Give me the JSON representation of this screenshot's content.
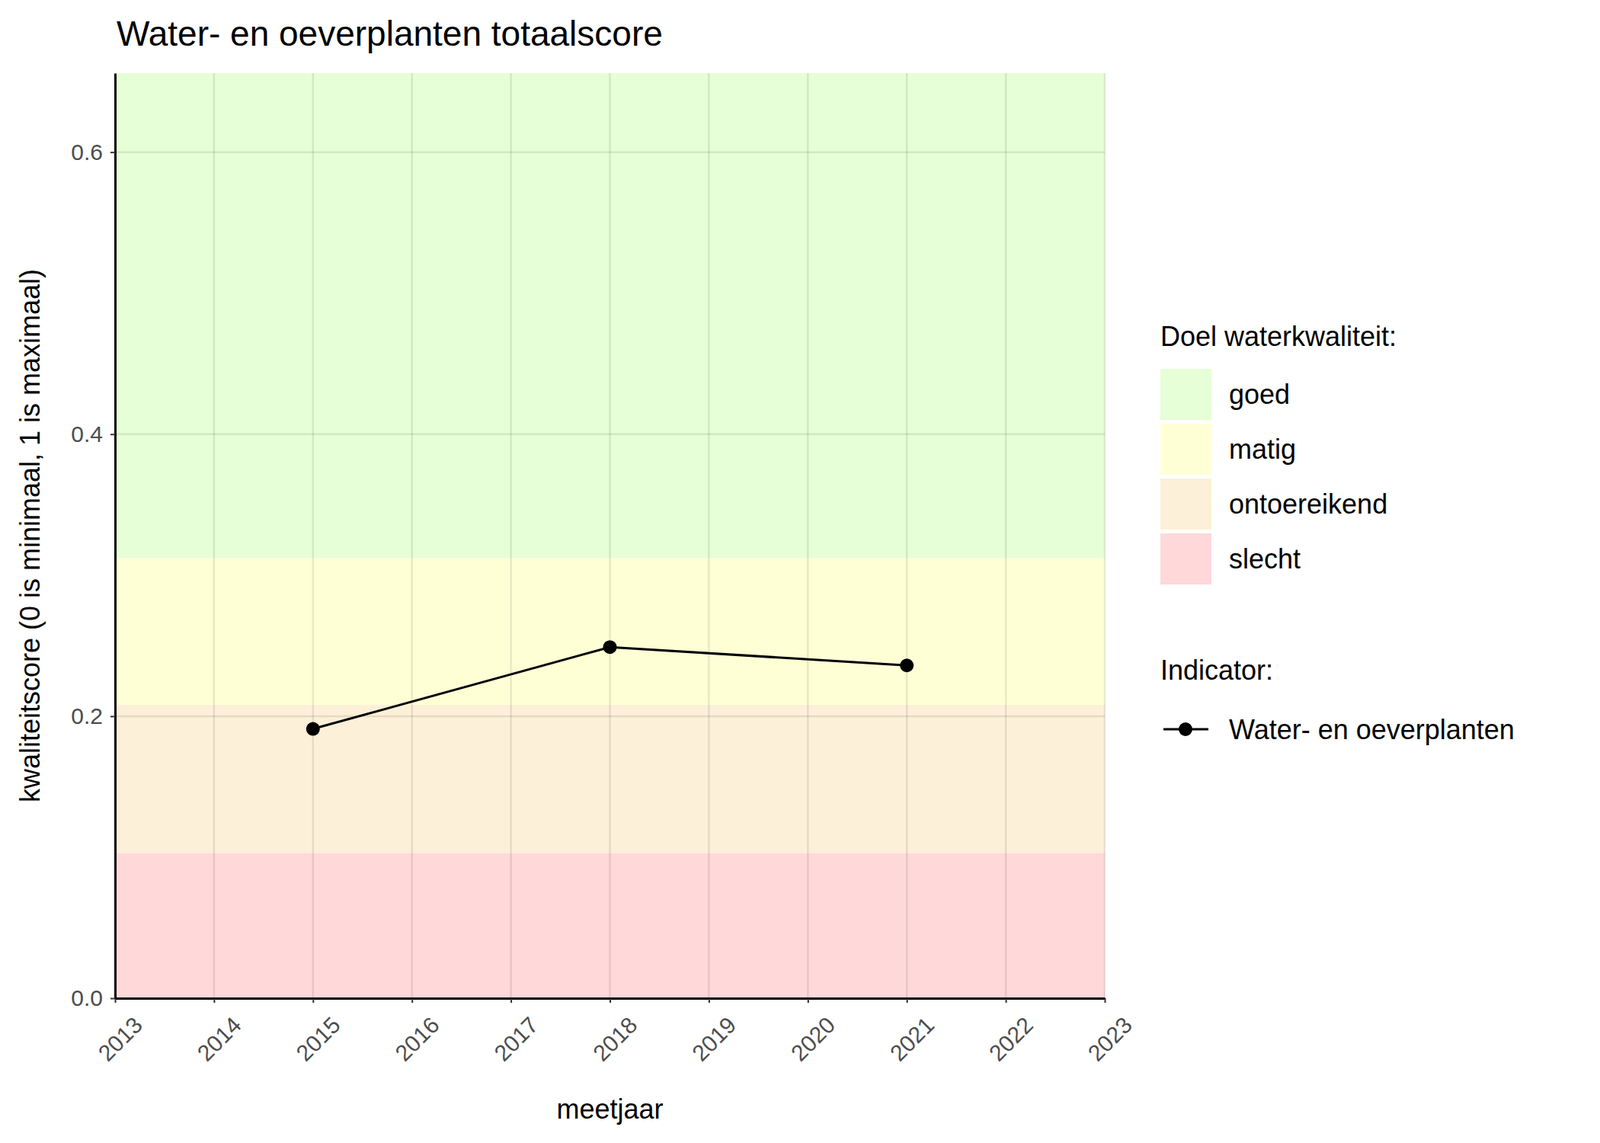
{
  "chart_data": {
    "type": "line",
    "title": "Water- en oeverplanten totaalscore",
    "x_label": "meetjaar",
    "y_label": "kwaliteitscore (0 is minimaal, 1 is maximaal)",
    "x": [
      2015,
      2018,
      2021
    ],
    "series": [
      {
        "name": "Water- en oeverplanten",
        "color": "#000000",
        "marker": "circle",
        "line_style": "solid",
        "values": [
          0.191,
          0.249,
          0.236
        ]
      }
    ],
    "xlim": [
      2013,
      2023
    ],
    "xticks": [
      2013,
      2014,
      2015,
      2016,
      2017,
      2018,
      2019,
      2020,
      2021,
      2022,
      2023
    ],
    "ylim": [
      0,
      0.656
    ],
    "yticks": [
      {
        "value": 0,
        "label": "0.0"
      },
      {
        "value": 0.2,
        "label": "0.2"
      },
      {
        "value": 0.4,
        "label": "0.4"
      },
      {
        "value": 0.6,
        "label": "0.6"
      }
    ],
    "grid": true,
    "legend": "right",
    "bands_title": "Doel waterkwaliteit:",
    "bands": [
      {
        "name": "goed",
        "color": "#e6ffd6",
        "from": 0.312,
        "to": 0.656
      },
      {
        "name": "matig",
        "color": "#ffffd6",
        "from": 0.208,
        "to": 0.312
      },
      {
        "name": "ontoereikend",
        "color": "#fdf0d9",
        "from": 0.103,
        "to": 0.208
      },
      {
        "name": "slecht",
        "color": "#ffd8da",
        "from": 0,
        "to": 0.103
      }
    ],
    "legend_title": "Indicator:"
  }
}
